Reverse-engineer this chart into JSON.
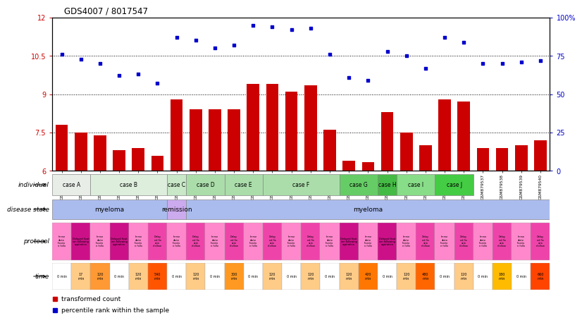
{
  "title": "GDS4007 / 8017547",
  "samples": [
    "GSM879509",
    "GSM879510",
    "GSM879511",
    "GSM879512",
    "GSM879513",
    "GSM879514",
    "GSM879517",
    "GSM879518",
    "GSM879519",
    "GSM879520",
    "GSM879525",
    "GSM879526",
    "GSM879527",
    "GSM879528",
    "GSM879529",
    "GSM879530",
    "GSM879531",
    "GSM879532",
    "GSM879533",
    "GSM879534",
    "GSM879535",
    "GSM879536",
    "GSM879537",
    "GSM879538",
    "GSM879539",
    "GSM879540"
  ],
  "bar_values": [
    7.8,
    7.5,
    7.4,
    6.8,
    6.9,
    6.6,
    8.8,
    8.4,
    8.4,
    8.4,
    9.4,
    9.4,
    9.1,
    9.35,
    7.6,
    6.4,
    6.35,
    8.3,
    7.5,
    7.0,
    8.8,
    8.7,
    6.9,
    6.9,
    7.0,
    7.2
  ],
  "scatter_values": [
    76,
    73,
    70,
    62,
    63,
    57,
    87,
    85,
    80,
    82,
    95,
    94,
    92,
    93,
    76,
    61,
    59,
    78,
    75,
    67,
    87,
    84,
    70,
    70,
    71,
    72
  ],
  "ylim_left": [
    6,
    12
  ],
  "ylim_right": [
    0,
    100
  ],
  "yticks_left": [
    6,
    7.5,
    9,
    10.5,
    12
  ],
  "yticks_right": [
    0,
    25,
    50,
    75,
    100
  ],
  "ytick_labels_right": [
    "0",
    "25",
    "50",
    "75",
    "100%"
  ],
  "hlines": [
    7.5,
    9.0,
    10.5
  ],
  "bar_color": "#CC0000",
  "scatter_color": "#0000CC",
  "case_spans": [
    [
      "case A",
      0,
      2,
      "#e8ede8"
    ],
    [
      "case B",
      2,
      6,
      "#ddeedd"
    ],
    [
      "case C",
      6,
      7,
      "#c8e8c8"
    ],
    [
      "case D",
      7,
      9,
      "#aaddaa"
    ],
    [
      "case E",
      9,
      11,
      "#aaddaa"
    ],
    [
      "case F",
      11,
      15,
      "#aaddaa"
    ],
    [
      "case G",
      15,
      17,
      "#66cc66"
    ],
    [
      "case H",
      17,
      18,
      "#44bb44"
    ],
    [
      "case I",
      18,
      20,
      "#88dd88"
    ],
    [
      "case J",
      20,
      22,
      "#44cc44"
    ]
  ],
  "disease_blocks": [
    [
      "myeloma",
      0,
      6,
      "#aabbee"
    ],
    [
      "remission",
      6,
      7,
      "#ccaaee"
    ],
    [
      "myeloma",
      7,
      26,
      "#aabbee"
    ]
  ],
  "prot_per_sample": [
    [
      "#ff88cc",
      "Imme\ndiate\nfixatio\nn follo"
    ],
    [
      "#cc1188",
      "Delayed fixat\nion following\naspiration"
    ],
    [
      "#ff88cc",
      "Imme\ndiate\nfixatio\nn follo"
    ],
    [
      "#cc1188",
      "Delayed fixat\nion following\naspiration"
    ],
    [
      "#ff88cc",
      "Imme\ndiate\nfixatio\nn follo"
    ],
    [
      "#ee44aa",
      "Delay\ned fix\natio\nnfollow"
    ],
    [
      "#ff88cc",
      "Imme\ndiate\nfixatio\nn follo"
    ],
    [
      "#ee44aa",
      "Delay\ned fix\natio\nnfollow"
    ],
    [
      "#ff88cc",
      "Imme\ndiate\nfixatio\nn follo"
    ],
    [
      "#ee44aa",
      "Delay\ned fix\natio\nnfollow"
    ],
    [
      "#ff88cc",
      "Imme\ndiate\nfixatio\nn follo"
    ],
    [
      "#ee44aa",
      "Delay\ned fix\natio\nnfollow"
    ],
    [
      "#ff88cc",
      "Imme\ndiate\nfixatio\nn follo"
    ],
    [
      "#ee44aa",
      "Delay\ned fix\natio\nnfollow"
    ],
    [
      "#ff88cc",
      "Imme\ndiate\nfixatio\nn follo"
    ],
    [
      "#cc1188",
      "Delayed fixat\nion following\naspiration"
    ],
    [
      "#ff88cc",
      "Imme\ndiate\nfixatio\nn follo"
    ],
    [
      "#cc1188",
      "Delayed fixat\nion following\naspiration"
    ],
    [
      "#ff88cc",
      "Imme\ndiate\nfixatio\nn follo"
    ],
    [
      "#ee44aa",
      "Delay\ned fix\natio\nnfollow"
    ],
    [
      "#ff88cc",
      "Imme\ndiate\nfixatio\nn follo"
    ],
    [
      "#ee44aa",
      "Delay\ned fix\natio\nnfollow"
    ],
    [
      "#ff88cc",
      "Imme\ndiate\nfixatio\nn follo"
    ],
    [
      "#ee44aa",
      "Delay\ned fix\natio\nnfollow"
    ],
    [
      "#ff88cc",
      "Imme\ndiate\nfixatio\nn follo"
    ],
    [
      "#ee44aa",
      "Delay\ned fix\natio\nnfollow"
    ]
  ],
  "time_per_sample": [
    [
      "#ffffff",
      "0 min"
    ],
    [
      "#ffcc88",
      "17\nmin"
    ],
    [
      "#ff9933",
      "120\nmin"
    ],
    [
      "#ffffff",
      "0 min"
    ],
    [
      "#ffcc88",
      "120\nmin"
    ],
    [
      "#ff5500",
      "540\nmin"
    ],
    [
      "#ffffff",
      "0 min"
    ],
    [
      "#ffcc88",
      "120\nmin"
    ],
    [
      "#ffffff",
      "0 min"
    ],
    [
      "#ff9922",
      "300\nmin"
    ],
    [
      "#ffffff",
      "0 min"
    ],
    [
      "#ffcc88",
      "120\nmin"
    ],
    [
      "#ffffff",
      "0 min"
    ],
    [
      "#ffcc88",
      "120\nmin"
    ],
    [
      "#ffffff",
      "0 min"
    ],
    [
      "#ffcc88",
      "120\nmin"
    ],
    [
      "#ff7700",
      "420\nmin"
    ],
    [
      "#ffffff",
      "0 min"
    ],
    [
      "#ffcc88",
      "120\nmin"
    ],
    [
      "#ff6600",
      "480\nmin"
    ],
    [
      "#ffffff",
      "0 min"
    ],
    [
      "#ffcc88",
      "120\nmin"
    ],
    [
      "#ffffff",
      "0 min"
    ],
    [
      "#ffbb00",
      "180\nmin"
    ],
    [
      "#ffffff",
      "0 min"
    ],
    [
      "#ff4400",
      "660\nmin"
    ]
  ],
  "n_samples": 26
}
